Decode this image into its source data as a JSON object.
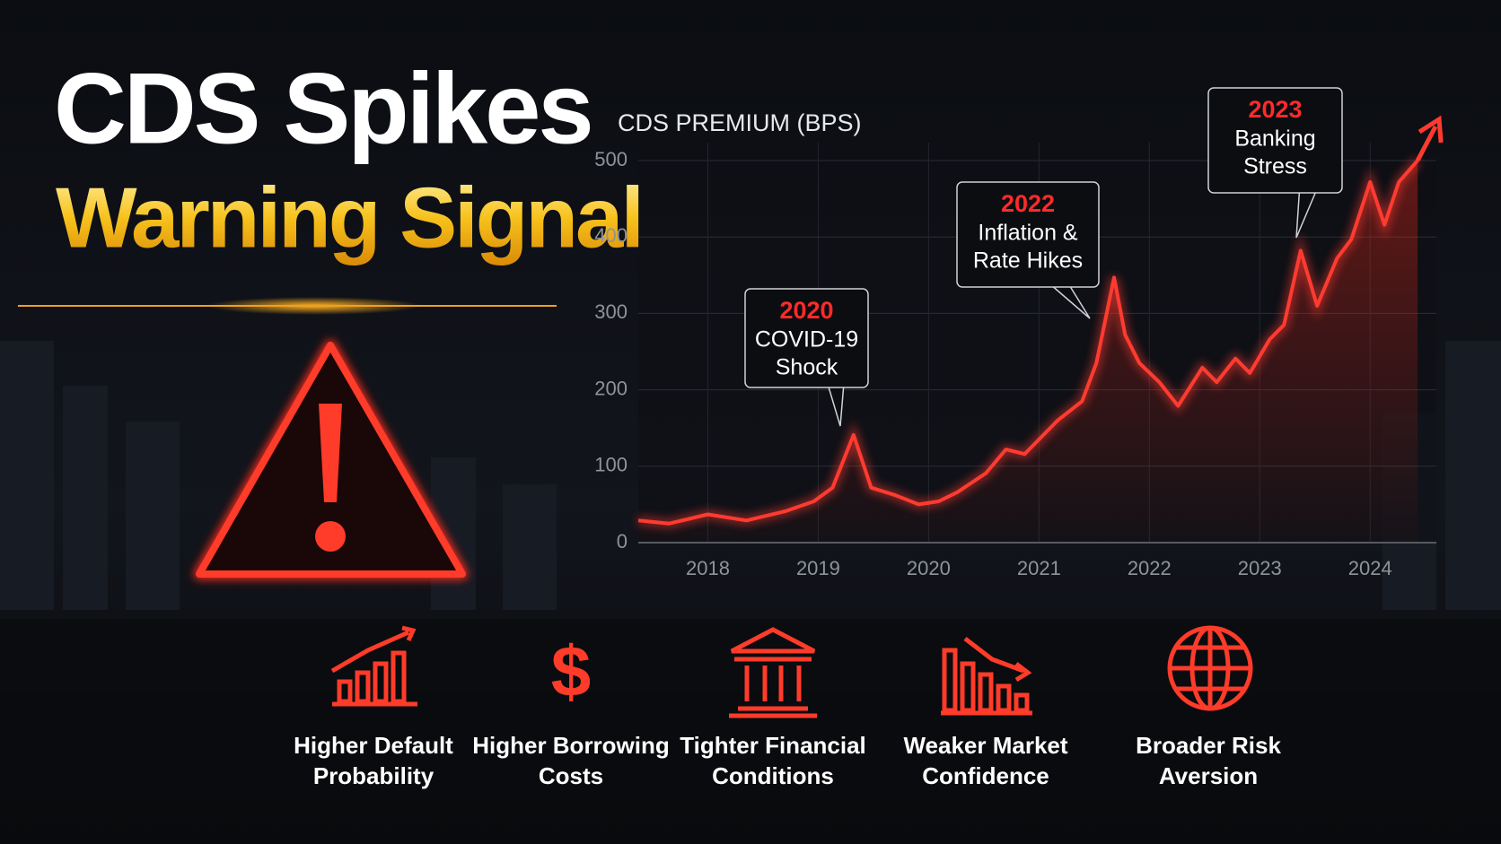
{
  "title": {
    "line1": "CDS Spikes",
    "line2": "Warning Signal"
  },
  "chart_data": {
    "type": "line",
    "y_label": "CDS PREMIUM (BPS)",
    "x": [
      2017.37,
      2017.65,
      2018.0,
      2018.35,
      2018.7,
      2018.96,
      2019.13,
      2019.32,
      2019.48,
      2019.7,
      2019.91,
      2020.09,
      2020.26,
      2020.52,
      2020.7,
      2020.87,
      2021.04,
      2021.17,
      2021.39,
      2021.52,
      2021.68,
      2021.78,
      2021.91,
      2022.09,
      2022.26,
      2022.48,
      2022.61,
      2022.78,
      2022.91,
      2023.09,
      2023.22,
      2023.37,
      2023.52,
      2023.7,
      2023.83,
      2024.0,
      2024.13,
      2024.26,
      2024.43
    ],
    "series": [
      {
        "color": "#ff3b30",
        "values": [
          29,
          25,
          37,
          29,
          41,
          54,
          72,
          141,
          72,
          62,
          50,
          54,
          66,
          91,
          122,
          116,
          141,
          160,
          185,
          235,
          347,
          272,
          235,
          210,
          179,
          229,
          210,
          241,
          222,
          266,
          285,
          382,
          310,
          372,
          397,
          472,
          416,
          472,
          500
        ]
      }
    ],
    "xlim": [
      2017.37,
      2024.6
    ],
    "xticks": [
      2018,
      2019,
      2020,
      2021,
      2022,
      2023,
      2024
    ],
    "ylim": [
      0,
      500
    ],
    "yticks": [
      0,
      100,
      200,
      300,
      400,
      500
    ],
    "grid": true,
    "annotations": [
      {
        "year": "2020",
        "text": [
          "COVID-19",
          "Shock"
        ]
      },
      {
        "year": "2022",
        "text": [
          "Inflation &",
          "Rate Hikes"
        ]
      },
      {
        "year": "2023",
        "text": [
          "Banking",
          "Stress"
        ]
      }
    ]
  },
  "impacts": [
    [
      "Higher Default",
      "Probability"
    ],
    [
      "Higher Borrowing",
      "Costs"
    ],
    [
      "Tighter Financial",
      "Conditions"
    ],
    [
      "Weaker Market",
      "Confidence"
    ],
    [
      "Broader Risk",
      "Aversion"
    ]
  ]
}
